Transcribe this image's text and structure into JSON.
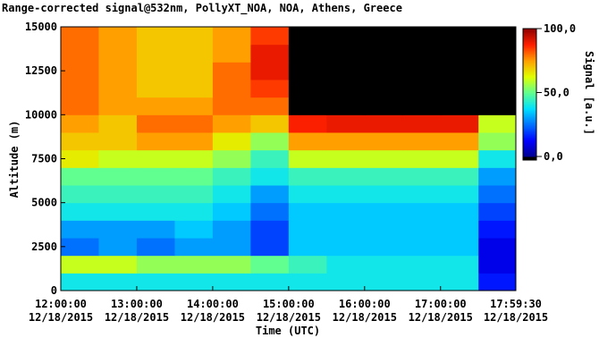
{
  "chart_data": {
    "type": "heatmap",
    "title": "Range-corrected signal@532nm, PollyXT_NOA, NOA, Athens, Greece",
    "xlabel": "Time (UTC)",
    "ylabel": "Altitude (m)",
    "colorbar_label": "Signal [a.u.]",
    "x": [
      0.25,
      0.75,
      1.25,
      1.75,
      2.25,
      2.75,
      3.25,
      3.75,
      4.25,
      4.75,
      5.25,
      5.75
    ],
    "y": [
      500,
      1500,
      2500,
      3500,
      4500,
      5500,
      6500,
      7500,
      8500,
      9500,
      10500,
      11500,
      12500,
      13500,
      14500
    ],
    "z": [
      [
        40,
        40,
        40,
        40,
        40,
        40,
        40,
        40,
        40,
        40,
        40,
        15
      ],
      [
        60,
        60,
        55,
        55,
        55,
        50,
        45,
        40,
        40,
        40,
        40,
        10
      ],
      [
        25,
        30,
        25,
        30,
        30,
        20,
        35,
        35,
        35,
        35,
        35,
        10
      ],
      [
        30,
        30,
        30,
        35,
        30,
        20,
        35,
        35,
        35,
        35,
        35,
        15
      ],
      [
        40,
        40,
        40,
        40,
        35,
        25,
        35,
        35,
        35,
        35,
        35,
        20
      ],
      [
        45,
        45,
        45,
        45,
        40,
        30,
        40,
        40,
        40,
        40,
        40,
        25
      ],
      [
        50,
        50,
        50,
        50,
        45,
        40,
        45,
        45,
        45,
        45,
        45,
        30
      ],
      [
        65,
        60,
        60,
        60,
        55,
        45,
        60,
        60,
        60,
        60,
        60,
        40
      ],
      [
        70,
        70,
        75,
        75,
        65,
        55,
        75,
        75,
        75,
        75,
        75,
        55
      ],
      [
        75,
        70,
        80,
        80,
        75,
        70,
        88,
        90,
        90,
        90,
        90,
        60
      ],
      [
        80,
        75,
        75,
        75,
        80,
        80,
        -10,
        -10,
        -10,
        -10,
        -10,
        -10
      ],
      [
        80,
        75,
        70,
        70,
        80,
        85,
        -10,
        -10,
        -10,
        -10,
        -10,
        -10
      ],
      [
        80,
        75,
        70,
        70,
        80,
        90,
        -10,
        -10,
        -10,
        -10,
        -10,
        -10
      ],
      [
        80,
        75,
        70,
        70,
        75,
        90,
        -10,
        -10,
        -10,
        -10,
        -10,
        -10
      ],
      [
        80,
        75,
        70,
        70,
        75,
        85,
        -10,
        -10,
        -10,
        -10,
        -10,
        -10
      ]
    ],
    "xlim": [
      0,
      5.9917
    ],
    "xticks": [
      {
        "value": 0,
        "label": "12:00:00\n12/18/2015"
      },
      {
        "value": 1,
        "label": "13:00:00\n12/18/2015"
      },
      {
        "value": 2,
        "label": "14:00:00\n12/18/2015"
      },
      {
        "value": 3,
        "label": "15:00:00\n12/18/2015"
      },
      {
        "value": 4,
        "label": "16:00:00\n12/18/2015"
      },
      {
        "value": 5,
        "label": "17:00:00\n12/18/2015"
      },
      {
        "value": 5.9917,
        "label": "17:59:30\n12/18/2015"
      }
    ],
    "ylim": [
      0,
      15000
    ],
    "yticks": [
      0,
      2500,
      5000,
      7500,
      10000,
      12500,
      15000
    ],
    "clim": [
      0,
      100
    ],
    "cticks": [
      {
        "value": 0,
        "label": "0,0"
      },
      {
        "value": 50,
        "label": "50,0"
      },
      {
        "value": 100,
        "label": "100,0"
      }
    ],
    "colormap": [
      "#00008f",
      "#0000ff",
      "#0070ff",
      "#00e0ff",
      "#60ff90",
      "#e0ff00",
      "#ffa000",
      "#ff2000",
      "#900000"
    ],
    "under_color": "#000000"
  }
}
